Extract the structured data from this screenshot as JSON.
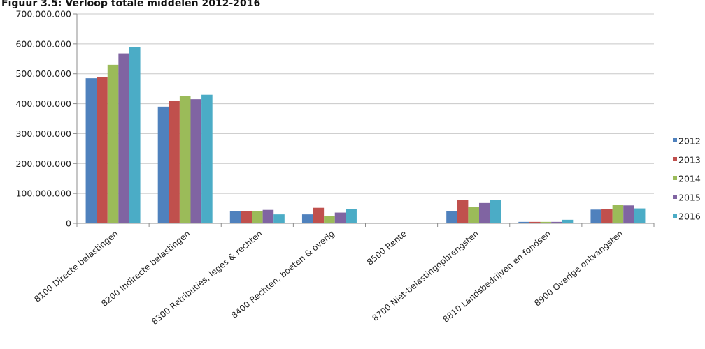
{
  "chart_data": {
    "type": "bar",
    "title": "Figuur 3.5: Verloop totale middelen 2012-2016",
    "xlabel": "",
    "ylabel": "",
    "ylim": [
      0,
      700000000
    ],
    "yticks": [
      {
        "value": 0,
        "label": "0"
      },
      {
        "value": 100000000,
        "label": "100.000.000"
      },
      {
        "value": 200000000,
        "label": "200.000.000"
      },
      {
        "value": 300000000,
        "label": "300.000.000"
      },
      {
        "value": 400000000,
        "label": "400.000.000"
      },
      {
        "value": 500000000,
        "label": "500.000.000"
      },
      {
        "value": 600000000,
        "label": "600.000.000"
      },
      {
        "value": 700000000,
        "label": "700.000.000"
      }
    ],
    "grid": true,
    "legend_position": "right",
    "categories": [
      "8100  Directe belastingen",
      "8200  Indirecte belastingen",
      "8300  Retributies, leges & rechten",
      "8400  Rechten, boeten & overig",
      "8500  Rente",
      "8700  Niet-belastingopbrengsten",
      "8810  Landsbedrijven en fondsen",
      "8900  Overige ontvangsten"
    ],
    "series": [
      {
        "name": "2012",
        "color": "#4F81BD",
        "values": [
          485000000,
          390000000,
          40000000,
          30000000,
          0,
          41000000,
          5000000,
          46000000
        ]
      },
      {
        "name": "2013",
        "color": "#C0504D",
        "values": [
          490000000,
          410000000,
          40000000,
          52000000,
          0,
          78000000,
          5000000,
          48000000
        ]
      },
      {
        "name": "2014",
        "color": "#9BBB59",
        "values": [
          530000000,
          425000000,
          42000000,
          25000000,
          0,
          55000000,
          5000000,
          61000000
        ]
      },
      {
        "name": "2015",
        "color": "#8064A2",
        "values": [
          568000000,
          415000000,
          45000000,
          36000000,
          0,
          68000000,
          5000000,
          60000000
        ]
      },
      {
        "name": "2016",
        "color": "#4BACC6",
        "values": [
          590000000,
          430000000,
          30000000,
          48000000,
          0,
          78000000,
          12000000,
          50000000
        ]
      }
    ]
  }
}
